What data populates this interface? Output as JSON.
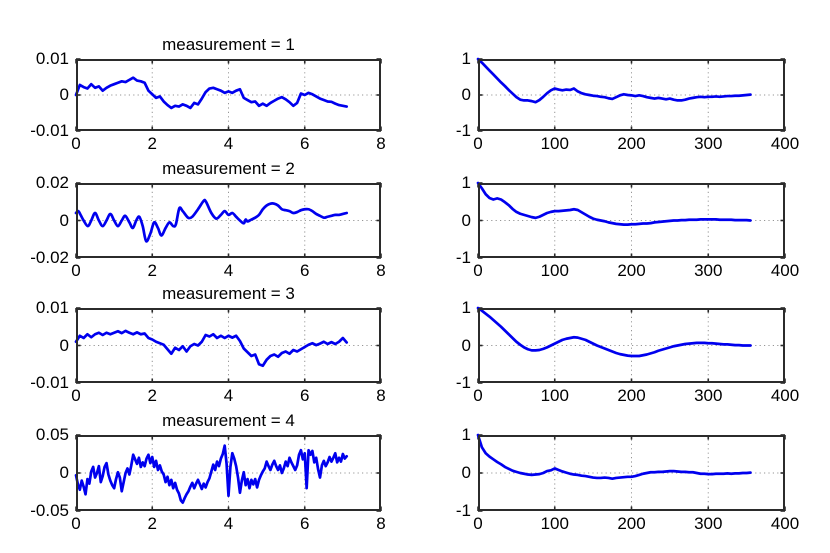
{
  "figure": {
    "kind": "matlab-style subplot grid: left column measurement signals, right column autocorrelation curves",
    "background": "#ffffff",
    "line_color": "#0000ee",
    "axis_color": "#2b2b2b",
    "grid_color": "#969696",
    "tick_label_color": "#000000"
  },
  "chart_data": [
    {
      "type": "line",
      "id": "measurement-1-signal",
      "title": "measurement = 1",
      "xlim": [
        0,
        8
      ],
      "ylim": [
        -0.01,
        0.01
      ],
      "grid": true,
      "xticks": [
        0,
        2,
        4,
        6,
        8
      ],
      "xtick_labels": [
        "0",
        "2",
        "4",
        "6",
        "8"
      ],
      "yticks": [
        -0.01,
        0,
        0.01
      ],
      "ytick_labels": [
        "-0.01",
        "0",
        "0.01"
      ],
      "smooth": false,
      "x_start": 0,
      "x_step": 0.1,
      "y_scale": 0.001,
      "y": [
        0,
        2.8,
        2.2,
        1.8,
        3,
        2,
        2.4,
        1.2,
        2,
        2.6,
        3,
        3.4,
        3.8,
        3.6,
        4.2,
        4.8,
        4,
        3.8,
        3.4,
        1.2,
        0.2,
        -0.8,
        -0.4,
        -1.8,
        -2.8,
        -3.6,
        -3,
        -3.2,
        -2.6,
        -3,
        -3.6,
        -2.2,
        -2.6,
        -1,
        0.8,
        1.8,
        2,
        1.6,
        1.2,
        0.6,
        1,
        0.6,
        1.2,
        1.6,
        -0.8,
        -1.4,
        -2,
        -1.8,
        -3,
        -2.4,
        -3,
        -2.2,
        -1.6,
        -1,
        -0.6,
        -1.2,
        -2,
        -3,
        -2.2,
        0.4,
        0,
        0.6,
        0.2,
        -0.4,
        -1,
        -1.4,
        -1.8,
        -1.9,
        -2.4,
        -2.8,
        -3,
        -3.2
      ]
    },
    {
      "type": "line",
      "id": "measurement-1-autocorrelation",
      "title": "",
      "xlim": [
        0,
        400
      ],
      "ylim": [
        -1,
        1
      ],
      "grid": true,
      "xticks": [
        0,
        100,
        200,
        300,
        400
      ],
      "xtick_labels": [
        "0",
        "100",
        "200",
        "300",
        "400"
      ],
      "yticks": [
        -1,
        0,
        1
      ],
      "ytick_labels": [
        "-1",
        "0",
        "1"
      ],
      "smooth": false,
      "x_start": 0,
      "x_step": 5,
      "y_scale": 1,
      "y": [
        1,
        0.9,
        0.79,
        0.68,
        0.57,
        0.46,
        0.35,
        0.25,
        0.14,
        0.04,
        -0.06,
        -0.13,
        -0.15,
        -0.15,
        -0.17,
        -0.2,
        -0.14,
        -0.05,
        0.05,
        0.13,
        0.18,
        0.15,
        0.13,
        0.15,
        0.14,
        0.18,
        0.1,
        0.05,
        0.02,
        0,
        -0.02,
        -0.03,
        -0.05,
        -0.06,
        -0.09,
        -0.11,
        -0.06,
        -0.01,
        0.02,
        0,
        -0.01,
        -0.03,
        -0.01,
        -0.03,
        -0.06,
        -0.08,
        -0.1,
        -0.08,
        -0.1,
        -0.12,
        -0.1,
        -0.13,
        -0.15,
        -0.15,
        -0.13,
        -0.1,
        -0.08,
        -0.06,
        -0.05,
        -0.06,
        -0.05,
        -0.05,
        -0.04,
        -0.05,
        -0.04,
        -0.03,
        -0.03,
        -0.02,
        -0.02,
        -0.01,
        0,
        0.01
      ]
    },
    {
      "type": "line",
      "id": "measurement-2-signal",
      "title": "measurement = 2",
      "xlim": [
        0,
        8
      ],
      "ylim": [
        -0.02,
        0.02
      ],
      "grid": true,
      "xticks": [
        0,
        2,
        4,
        6,
        8
      ],
      "xtick_labels": [
        "0",
        "2",
        "4",
        "6",
        "8"
      ],
      "yticks": [
        -0.02,
        0,
        0.02
      ],
      "ytick_labels": [
        "-0.02",
        "0",
        "0.02"
      ],
      "smooth": true,
      "y_scale": 0.001,
      "x": [
        0,
        0.06,
        0.12,
        0.2,
        0.31,
        0.4,
        0.5,
        0.6,
        0.7,
        0.8,
        0.9,
        1,
        1.1,
        1.2,
        1.29,
        1.4,
        1.49,
        1.58,
        1.66,
        1.75,
        1.84,
        1.95,
        2.05,
        2.15,
        2.24,
        2.35,
        2.45,
        2.55,
        2.62,
        2.71,
        2.8,
        2.94,
        3.05,
        3.2,
        3.35,
        3.41,
        3.55,
        3.68,
        3.8,
        3.9,
        4,
        4.1,
        4.2,
        4.3,
        4.4,
        4.45,
        4.5,
        4.6,
        4.7,
        4.8,
        4.9,
        5,
        5.1,
        5.2,
        5.3,
        5.4,
        5.5,
        5.6,
        5.7,
        5.8,
        5.9,
        6,
        6.1,
        6.2,
        6.3,
        6.4,
        6.5,
        6.6,
        6.7,
        6.8,
        6.9,
        7,
        7.1
      ],
      "y": [
        4,
        5,
        3,
        0,
        -3,
        0,
        4,
        0,
        -3,
        0,
        3.5,
        0,
        -3,
        0,
        2.5,
        -1,
        -4,
        0,
        2,
        -3,
        -11,
        -7,
        -1,
        -4,
        -8,
        -4,
        -1,
        -3,
        -2,
        6.5,
        5,
        1.5,
        2,
        6,
        10.5,
        10,
        4,
        1,
        3,
        5,
        3,
        4,
        2,
        0,
        -1.5,
        0.5,
        -0.5,
        0.5,
        1.5,
        3,
        6,
        8,
        9,
        9,
        8,
        6,
        5.5,
        5,
        4,
        4.5,
        5.5,
        6,
        6,
        5,
        3.5,
        2.5,
        1.5,
        2,
        2.5,
        3,
        3,
        3.5,
        4
      ]
    },
    {
      "type": "line",
      "id": "measurement-2-autocorrelation",
      "title": "",
      "xlim": [
        0,
        400
      ],
      "ylim": [
        -1,
        1
      ],
      "grid": true,
      "xticks": [
        0,
        100,
        200,
        300,
        400
      ],
      "xtick_labels": [
        "0",
        "100",
        "200",
        "300",
        "400"
      ],
      "yticks": [
        -1,
        0,
        1
      ],
      "ytick_labels": [
        "-1",
        "0",
        "1"
      ],
      "smooth": false,
      "x_start": 0,
      "x_step": 5,
      "y_scale": 1,
      "y": [
        1,
        0.86,
        0.7,
        0.6,
        0.56,
        0.59,
        0.56,
        0.49,
        0.41,
        0.31,
        0.23,
        0.18,
        0.15,
        0.12,
        0.09,
        0.07,
        0.1,
        0.15,
        0.2,
        0.23,
        0.25,
        0.25,
        0.26,
        0.27,
        0.28,
        0.3,
        0.28,
        0.22,
        0.16,
        0.1,
        0.05,
        0.02,
        0,
        -0.02,
        -0.05,
        -0.07,
        -0.09,
        -0.1,
        -0.11,
        -0.11,
        -0.1,
        -0.1,
        -0.09,
        -0.08,
        -0.08,
        -0.07,
        -0.05,
        -0.04,
        -0.03,
        -0.02,
        -0.01,
        0,
        0,
        0.01,
        0.01,
        0.02,
        0.02,
        0.02,
        0.03,
        0.03,
        0.03,
        0.03,
        0.03,
        0.02,
        0.02,
        0.02,
        0.02,
        0.01,
        0.01,
        0.01,
        0.01,
        0
      ]
    },
    {
      "type": "line",
      "id": "measurement-3-signal",
      "title": "measurement = 3",
      "xlim": [
        0,
        8
      ],
      "ylim": [
        -0.01,
        0.01
      ],
      "grid": true,
      "xticks": [
        0,
        2,
        4,
        6,
        8
      ],
      "xtick_labels": [
        "0",
        "2",
        "4",
        "6",
        "8"
      ],
      "yticks": [
        -0.01,
        0,
        0.01
      ],
      "ytick_labels": [
        "-0.01",
        "0",
        "0.01"
      ],
      "smooth": false,
      "x_start": 0,
      "x_step": 0.1,
      "y_scale": 0.001,
      "y": [
        1,
        2.6,
        2,
        3,
        2.2,
        3,
        3.4,
        2.8,
        3.4,
        3,
        3.4,
        3.8,
        3.3,
        3.9,
        3.4,
        3,
        3.5,
        3,
        3.2,
        2,
        1.6,
        1,
        0.6,
        0.2,
        -1,
        -2.2,
        -0.6,
        -1.2,
        -0.2,
        -1.6,
        -0.2,
        0.4,
        0,
        1,
        2.8,
        2.4,
        3,
        2,
        2.6,
        2,
        2.6,
        2.1,
        2.6,
        1.2,
        -0.8,
        -1.8,
        -2.8,
        -2.4,
        -5,
        -5.4,
        -3.8,
        -2.8,
        -2.4,
        -3,
        -2,
        -1.6,
        -2.2,
        -1.2,
        -1.6,
        -1,
        -0.4,
        0.2,
        0.6,
        0.1,
        0.5,
        1,
        0.4,
        0.9,
        0.4,
        1,
        2,
        0.8
      ]
    },
    {
      "type": "line",
      "id": "measurement-3-autocorrelation",
      "title": "",
      "xlim": [
        0,
        400
      ],
      "ylim": [
        -1,
        1
      ],
      "grid": true,
      "xticks": [
        0,
        100,
        200,
        300,
        400
      ],
      "xtick_labels": [
        "0",
        "100",
        "200",
        "300",
        "400"
      ],
      "yticks": [
        -1,
        0,
        1
      ],
      "ytick_labels": [
        "-1",
        "0",
        "1"
      ],
      "smooth": false,
      "x_start": 0,
      "x_step": 5,
      "y_scale": 1,
      "y": [
        1,
        0.93,
        0.85,
        0.77,
        0.68,
        0.59,
        0.5,
        0.4,
        0.3,
        0.2,
        0.1,
        0.02,
        -0.05,
        -0.1,
        -0.13,
        -0.13,
        -0.12,
        -0.09,
        -0.05,
        0,
        0.05,
        0.1,
        0.15,
        0.18,
        0.2,
        0.22,
        0.21,
        0.18,
        0.15,
        0.1,
        0.05,
        0,
        -0.04,
        -0.08,
        -0.12,
        -0.16,
        -0.2,
        -0.23,
        -0.25,
        -0.27,
        -0.28,
        -0.28,
        -0.28,
        -0.26,
        -0.24,
        -0.21,
        -0.18,
        -0.14,
        -0.11,
        -0.08,
        -0.05,
        -0.02,
        0,
        0.02,
        0.04,
        0.05,
        0.06,
        0.07,
        0.07,
        0.07,
        0.06,
        0.06,
        0.05,
        0.04,
        0.03,
        0.03,
        0.02,
        0.01,
        0.01,
        0,
        0,
        0
      ]
    },
    {
      "type": "line",
      "id": "measurement-4-signal",
      "title": "measurement = 4",
      "xlim": [
        0,
        8
      ],
      "ylim": [
        -0.05,
        0.05
      ],
      "grid": true,
      "xticks": [
        0,
        2,
        4,
        6,
        8
      ],
      "xtick_labels": [
        "0",
        "2",
        "4",
        "6",
        "8"
      ],
      "yticks": [
        -0.05,
        0,
        0.05
      ],
      "ytick_labels": [
        "-0.05",
        "0",
        "0.05"
      ],
      "smooth": false,
      "x_start": 0,
      "x_step": 0.05,
      "y_scale": 0.001,
      "y": [
        -3,
        -15,
        -22,
        -10,
        -18,
        -28,
        -8,
        -14,
        2,
        8,
        -6,
        0,
        9,
        -12,
        -4,
        8,
        13,
        -2,
        -10,
        -16,
        -20,
        -8,
        1,
        -6,
        -24,
        -12,
        0,
        6,
        -2,
        10,
        24,
        18,
        12,
        20,
        8,
        14,
        9,
        19,
        24,
        13,
        21,
        8,
        16,
        4,
        10,
        2,
        -2,
        -12,
        -5,
        -16,
        -9,
        -20,
        -13,
        -22,
        -27,
        -36,
        -39,
        -33,
        -28,
        -24,
        -18,
        -13,
        -20,
        -14,
        -9,
        -15,
        -21,
        -14,
        -19,
        -12,
        -7,
        2,
        11,
        4,
        15,
        9,
        19,
        25,
        36,
        12,
        -30,
        8,
        26,
        19,
        9,
        -6,
        -26,
        -10,
        1,
        -16,
        -8,
        -20,
        -9,
        -15,
        -8,
        -19,
        -9,
        -3,
        2,
        6,
        15,
        9,
        4,
        11,
        16,
        9,
        4,
        10,
        0,
        6,
        15,
        9,
        20,
        14,
        9,
        4,
        10,
        24,
        30,
        18,
        26,
        -20,
        30,
        24,
        29,
        14,
        20,
        5,
        -6,
        10,
        16,
        9,
        14,
        21,
        15,
        20,
        26,
        14,
        20,
        15,
        25,
        19,
        22
      ]
    },
    {
      "type": "line",
      "id": "measurement-4-autocorrelation",
      "title": "",
      "xlim": [
        0,
        400
      ],
      "ylim": [
        -1,
        1
      ],
      "grid": true,
      "xticks": [
        0,
        100,
        200,
        300,
        400
      ],
      "xtick_labels": [
        "0",
        "100",
        "200",
        "300",
        "400"
      ],
      "yticks": [
        -1,
        0,
        1
      ],
      "ytick_labels": [
        "-1",
        "0",
        "1"
      ],
      "smooth": false,
      "x_start": 0,
      "x_step": 5,
      "y_scale": 1,
      "y": [
        1,
        0.68,
        0.52,
        0.43,
        0.36,
        0.29,
        0.23,
        0.16,
        0.11,
        0.06,
        0.03,
        0,
        -0.02,
        -0.04,
        -0.05,
        -0.04,
        -0.03,
        0,
        0.05,
        0.07,
        0.12,
        0.08,
        0.04,
        0.01,
        -0.02,
        -0.04,
        -0.05,
        -0.07,
        -0.08,
        -0.1,
        -0.12,
        -0.13,
        -0.13,
        -0.12,
        -0.13,
        -0.15,
        -0.13,
        -0.12,
        -0.11,
        -0.1,
        -0.1,
        -0.08,
        -0.05,
        -0.02,
        0,
        0.02,
        0.02,
        0.03,
        0.03,
        0.04,
        0.05,
        0.05,
        0.04,
        0.03,
        0.03,
        0.02,
        0.02,
        0,
        -0.02,
        -0.02,
        -0.03,
        -0.03,
        -0.02,
        -0.02,
        -0.02,
        -0.01,
        -0.02,
        -0.01,
        -0.01,
        0,
        0,
        0.01
      ]
    }
  ]
}
